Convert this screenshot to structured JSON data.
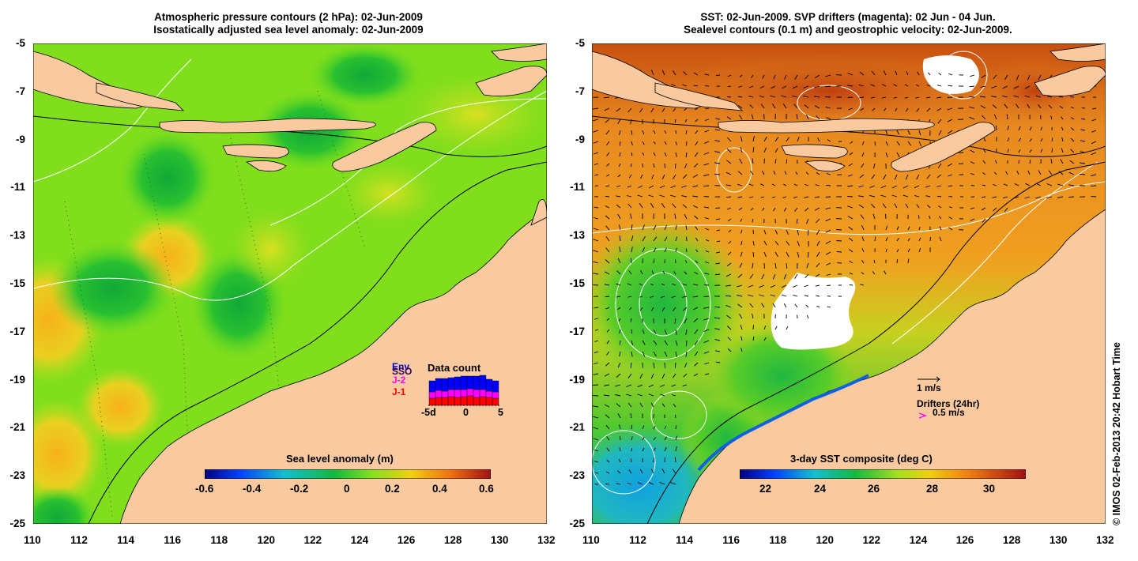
{
  "left_map": {
    "title_line1": "Atmospheric pressure contours (2 hPa): 02-Jun-2009",
    "title_line2": "Isostatically adjusted sea level anomaly: 02-Jun-2009",
    "colorbar_title": "Sea level anomaly (m)",
    "colorbar_ticks": [
      "-0.6",
      "-0.4",
      "-0.2",
      "0",
      "0.2",
      "0.4",
      "0.6"
    ],
    "inset": {
      "title": "Data count",
      "labels": [
        "Env",
        "SSO",
        "J-2",
        "J-1"
      ],
      "label_colors": [
        "#0000cc",
        "#000000",
        "#ff00ff",
        "#ff0000"
      ],
      "xticks": [
        "-5d",
        "0",
        "5"
      ]
    }
  },
  "right_map": {
    "title_line1": "SST: 02-Jun-2009. SVP drifters (magenta): 02 Jun - 04 Jun.",
    "title_line2": "Sealevel contours (0.1 m) and geostrophic velocity: 02-Jun-2009.",
    "colorbar_title": "3-day SST composite (deg C)",
    "colorbar_ticks": [
      "22",
      "24",
      "26",
      "28",
      "30"
    ],
    "velocity_legend": "1 m/s",
    "drifter_legend_title": "Drifters (24hr)",
    "drifter_legend_speed": "0.5 m/s"
  },
  "lat_ticks": [
    "-5",
    "-7",
    "-9",
    "-11",
    "-13",
    "-15",
    "-17",
    "-19",
    "-21",
    "-23",
    "-25"
  ],
  "lon_ticks": [
    "110",
    "112",
    "114",
    "116",
    "118",
    "120",
    "122",
    "124",
    "126",
    "128",
    "130",
    "132"
  ],
  "credit": "© IMOS 02-Feb-2013 20:42 Hobart Time",
  "colors": {
    "land": "#f9c9a0",
    "ocean_sla": "#7fe01a",
    "ocean_sst": "#f0a020"
  }
}
